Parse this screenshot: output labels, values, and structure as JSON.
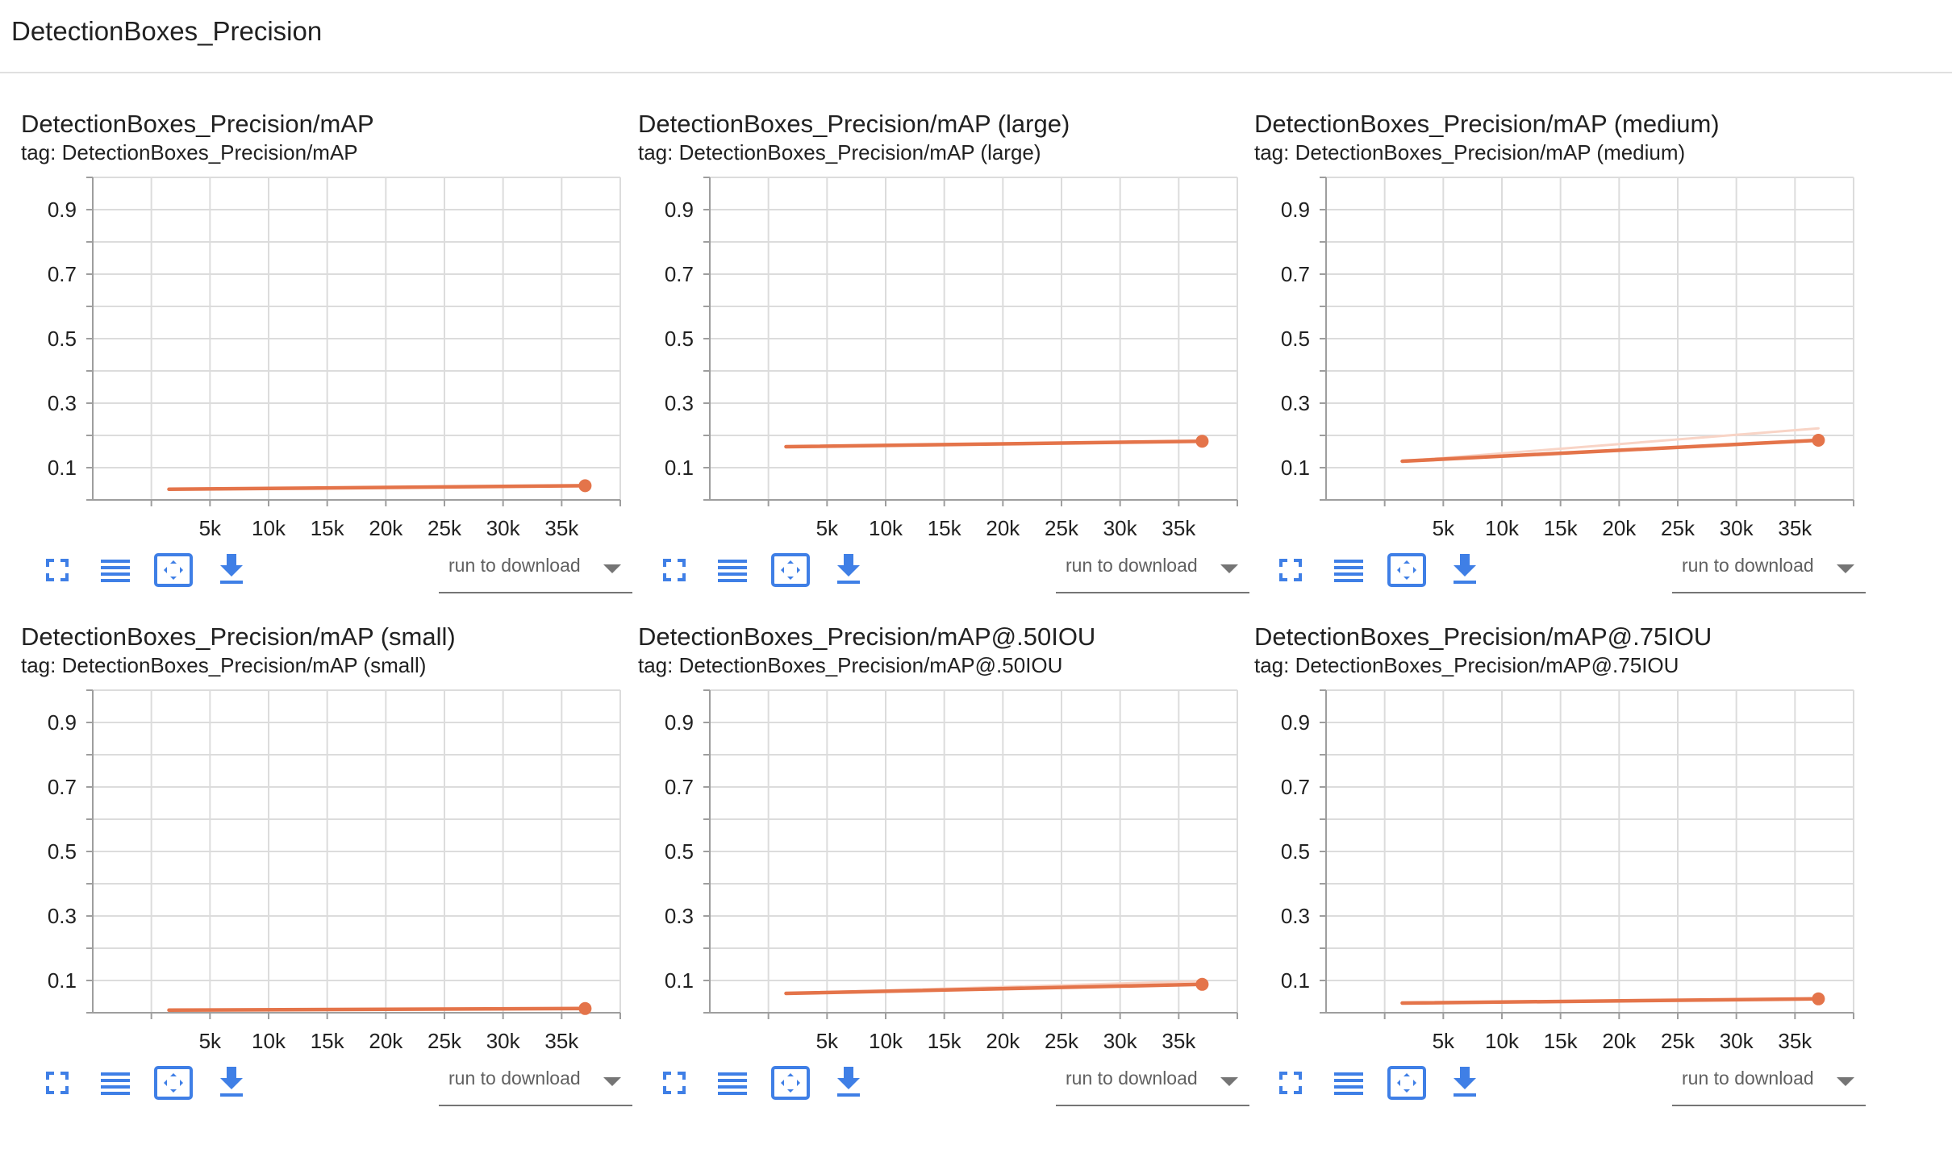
{
  "section": {
    "title": "DetectionBoxes_Precision"
  },
  "colors": {
    "line": "#e4744a",
    "line_raw": "#f8d4c6",
    "grid": "#dcdcdc",
    "icon": "#3f7fe6"
  },
  "toolbar": {
    "icons": [
      "fullscreen-icon",
      "list-icon",
      "fit-domain-icon",
      "download-icon"
    ],
    "run_placeholder": "run to download"
  },
  "chart_data": [
    {
      "type": "line",
      "title": "DetectionBoxes_Precision/mAP",
      "tag": "tag: DetectionBoxes_Precision/mAP",
      "xlim": [
        -5000,
        40000
      ],
      "ylim": [
        0,
        1.0
      ],
      "xticks": [
        "5k",
        "10k",
        "15k",
        "20k",
        "25k",
        "30k",
        "35k"
      ],
      "yticks": [
        "0.9",
        "0.7",
        "0.5",
        "0.3",
        "0.1"
      ],
      "series": [
        {
          "values": [
            [
              1500,
              0.033
            ],
            [
              37000,
              0.044
            ]
          ],
          "role": "smoothed"
        }
      ]
    },
    {
      "type": "line",
      "title": "DetectionBoxes_Precision/mAP (large)",
      "tag": "tag: DetectionBoxes_Precision/mAP (large)",
      "xlim": [
        -5000,
        40000
      ],
      "ylim": [
        0,
        1.0
      ],
      "xticks": [
        "5k",
        "10k",
        "15k",
        "20k",
        "25k",
        "30k",
        "35k"
      ],
      "yticks": [
        "0.9",
        "0.7",
        "0.5",
        "0.3",
        "0.1"
      ],
      "series": [
        {
          "values": [
            [
              1500,
              0.165
            ],
            [
              37000,
              0.182
            ]
          ],
          "role": "smoothed"
        }
      ]
    },
    {
      "type": "line",
      "title": "DetectionBoxes_Precision/mAP (medium)",
      "tag": "tag: DetectionBoxes_Precision/mAP (medium)",
      "xlim": [
        -5000,
        40000
      ],
      "ylim": [
        0,
        1.0
      ],
      "xticks": [
        "5k",
        "10k",
        "15k",
        "20k",
        "25k",
        "30k",
        "35k"
      ],
      "yticks": [
        "0.9",
        "0.7",
        "0.5",
        "0.3",
        "0.1"
      ],
      "series": [
        {
          "values": [
            [
              1500,
              0.12
            ],
            [
              37000,
              0.222
            ]
          ],
          "role": "raw"
        },
        {
          "values": [
            [
              1500,
              0.12
            ],
            [
              37000,
              0.185
            ]
          ],
          "role": "smoothed"
        }
      ]
    },
    {
      "type": "line",
      "title": "DetectionBoxes_Precision/mAP (small)",
      "tag": "tag: DetectionBoxes_Precision/mAP (small)",
      "xlim": [
        -5000,
        40000
      ],
      "ylim": [
        0,
        1.0
      ],
      "xticks": [
        "5k",
        "10k",
        "15k",
        "20k",
        "25k",
        "30k",
        "35k"
      ],
      "yticks": [
        "0.9",
        "0.7",
        "0.5",
        "0.3",
        "0.1"
      ],
      "series": [
        {
          "values": [
            [
              1500,
              0.008
            ],
            [
              37000,
              0.013
            ]
          ],
          "role": "smoothed"
        }
      ]
    },
    {
      "type": "line",
      "title": "DetectionBoxes_Precision/mAP@.50IOU",
      "tag": "tag: DetectionBoxes_Precision/mAP@.50IOU",
      "xlim": [
        -5000,
        40000
      ],
      "ylim": [
        0,
        1.0
      ],
      "xticks": [
        "5k",
        "10k",
        "15k",
        "20k",
        "25k",
        "30k",
        "35k"
      ],
      "yticks": [
        "0.9",
        "0.7",
        "0.5",
        "0.3",
        "0.1"
      ],
      "series": [
        {
          "values": [
            [
              1500,
              0.06
            ],
            [
              37000,
              0.098
            ]
          ],
          "role": "raw"
        },
        {
          "values": [
            [
              1500,
              0.06
            ],
            [
              37000,
              0.088
            ]
          ],
          "role": "smoothed"
        }
      ]
    },
    {
      "type": "line",
      "title": "DetectionBoxes_Precision/mAP@.75IOU",
      "tag": "tag: DetectionBoxes_Precision/mAP@.75IOU",
      "xlim": [
        -5000,
        40000
      ],
      "ylim": [
        0,
        1.0
      ],
      "xticks": [
        "5k",
        "10k",
        "15k",
        "20k",
        "25k",
        "30k",
        "35k"
      ],
      "yticks": [
        "0.9",
        "0.7",
        "0.5",
        "0.3",
        "0.1"
      ],
      "series": [
        {
          "values": [
            [
              1500,
              0.03
            ],
            [
              37000,
              0.043
            ]
          ],
          "role": "smoothed"
        }
      ]
    }
  ]
}
